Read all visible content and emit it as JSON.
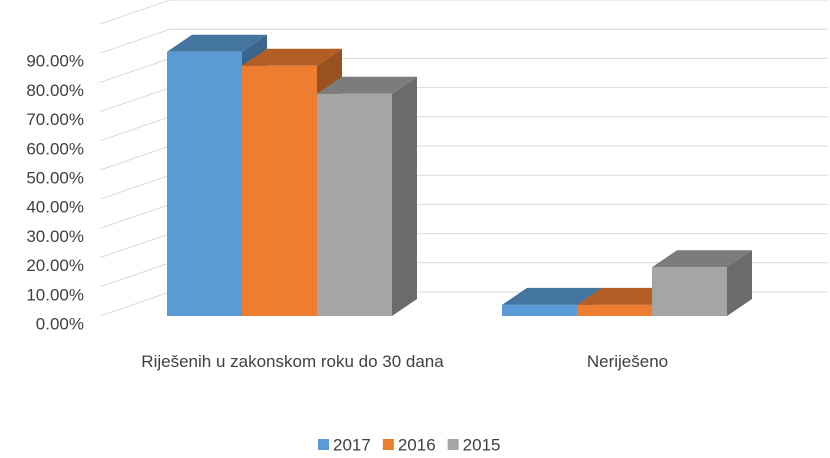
{
  "chart_data": {
    "type": "bar3d",
    "categories": [
      "Riješenih u zakonskom roku do 30 dana",
      "Neriješeno"
    ],
    "series": [
      {
        "name": "2017",
        "color": "#5b9bd5",
        "values": [
          90.5,
          3.8
        ]
      },
      {
        "name": "2016",
        "color": "#ed7d31",
        "values": [
          85.7,
          3.8
        ]
      },
      {
        "name": "2015",
        "color": "#a5a5a5",
        "values": [
          76.1,
          16.7
        ]
      }
    ],
    "ylim": [
      0,
      100
    ],
    "yticks": [
      {
        "value": 0,
        "label": "0.00%"
      },
      {
        "value": 10,
        "label": "10.00%"
      },
      {
        "value": 20,
        "label": "20.00%"
      },
      {
        "value": 30,
        "label": "30.00%"
      },
      {
        "value": 40,
        "label": "40.00%"
      },
      {
        "value": 50,
        "label": "50.00%"
      },
      {
        "value": 60,
        "label": "60.00%"
      },
      {
        "value": 70,
        "label": "70.00%"
      },
      {
        "value": 80,
        "label": "80.00%"
      },
      {
        "value": 90,
        "label": "90.00%"
      }
    ],
    "grid": true,
    "legend": "bottom"
  }
}
